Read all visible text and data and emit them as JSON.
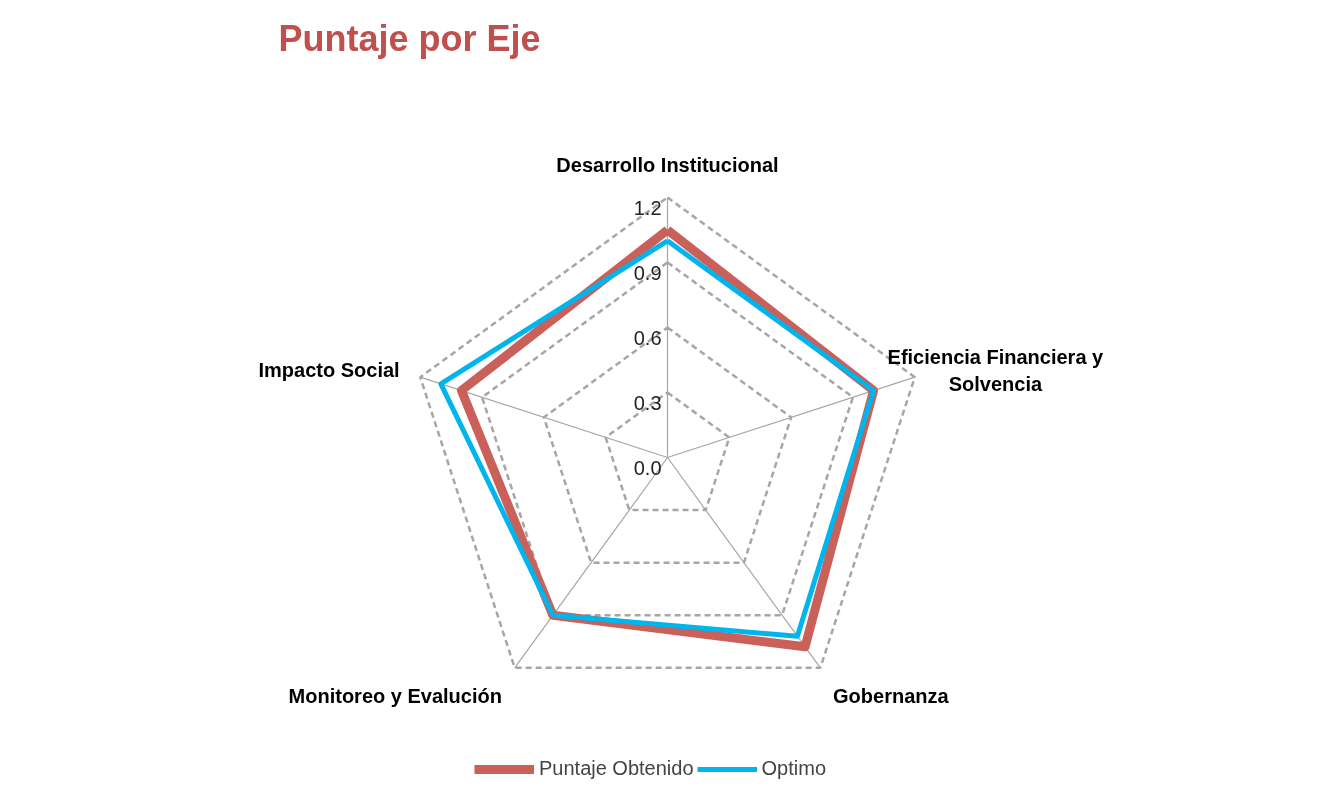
{
  "chart_data": {
    "type": "radar",
    "title": "Puntaje por Eje",
    "categories": [
      "Desarrollo Institucional",
      "Eficiencia Financiera y Solvencia",
      "Gobernanza",
      "Monitoreo y Evalución",
      "Impacto Social"
    ],
    "series": [
      {
        "name": "Puntaje Obtenido",
        "color": "#c9605a",
        "values": [
          1.05,
          1.0,
          1.08,
          0.9,
          1.0
        ]
      },
      {
        "name": "Optimo",
        "color": "#00b4ec",
        "values": [
          1.0,
          1.0,
          1.02,
          0.9,
          1.1
        ]
      }
    ],
    "ylim": [
      0,
      1.2
    ],
    "yticks": [
      {
        "value": 0,
        "label": "0.0"
      },
      0.3,
      0.6,
      0.9,
      1.2
    ],
    "grid": true,
    "legend": "bottom",
    "line_style": "solid",
    "marker": "none"
  }
}
